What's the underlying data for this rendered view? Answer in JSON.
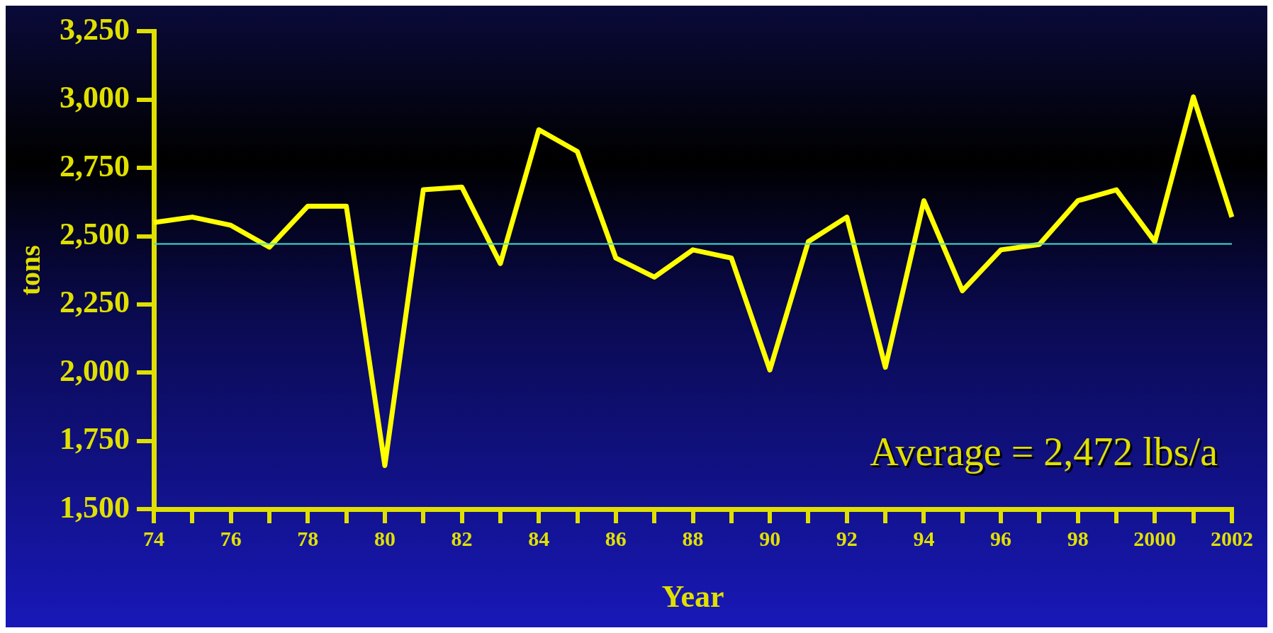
{
  "chart_data": {
    "type": "line",
    "xlabel": "Year",
    "ylabel": "tons",
    "categories": [
      "74",
      null,
      "76",
      null,
      "78",
      null,
      "80",
      null,
      "82",
      null,
      "84",
      null,
      "86",
      null,
      "88",
      null,
      "90",
      null,
      "92",
      null,
      "94",
      null,
      "96",
      null,
      "98",
      null,
      "2000",
      null,
      "2002"
    ],
    "series": [
      {
        "color": "#ffff00",
        "values": [
          2550,
          2570,
          2540,
          2460,
          2610,
          2610,
          1660,
          2670,
          2680,
          2400,
          2890,
          2810,
          2420,
          2350,
          2450,
          2420,
          2010,
          2480,
          2570,
          2020,
          2630,
          2300,
          2450,
          2470,
          2630,
          2670,
          2480,
          3010,
          2570
        ]
      }
    ],
    "ylim": [
      1500,
      3250
    ],
    "yticks": [
      {
        "value": 1500,
        "label": "1,500"
      },
      {
        "value": 1750,
        "label": "1,750"
      },
      {
        "value": 2000,
        "label": "2,000"
      },
      {
        "value": 2250,
        "label": "2,250"
      },
      {
        "value": 2500,
        "label": "2,500"
      },
      {
        "value": 2750,
        "label": "2,750"
      },
      {
        "value": 3000,
        "label": "3,000"
      },
      {
        "value": 3250,
        "label": "3,250"
      }
    ],
    "ref_lines": [
      {
        "axis": "y",
        "value": 2472,
        "color": "#40e0d0"
      }
    ],
    "annotations": [
      "Average = 2,472 lbs/a"
    ]
  }
}
